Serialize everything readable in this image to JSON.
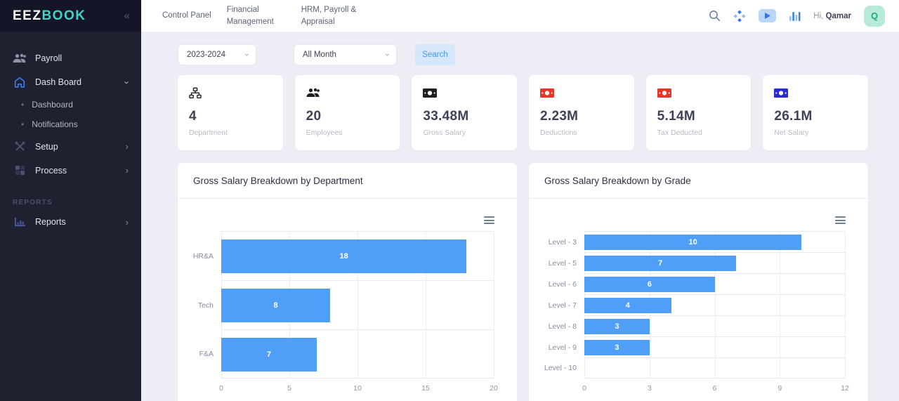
{
  "sidebar": {
    "logo": {
      "primary": "EEZ",
      "secondary": "BOOK"
    },
    "collapse_icon": "«",
    "items": [
      {
        "label": "Payroll",
        "icon": "users-icon"
      },
      {
        "label": "Dash Board",
        "icon": "home-icon",
        "expanded": true
      },
      {
        "label": "Dashboard",
        "icon": "bullet-icon"
      },
      {
        "label": "Notifications",
        "icon": "bullet-icon"
      },
      {
        "label": "Setup",
        "icon": "tools-icon"
      },
      {
        "label": "Process",
        "icon": "grid-icon"
      },
      {
        "label": "Reports",
        "icon": "bar-chart-icon"
      }
    ],
    "section_label": "REPORTS"
  },
  "topbar": {
    "nav": [
      {
        "label": "Control Panel"
      },
      {
        "label": "Financial Management"
      },
      {
        "label": "HRM, Payroll & Appraisal"
      }
    ],
    "icons": [
      "search-icon",
      "apps-diamond-icon",
      "video-play-icon",
      "bar-chart-icon"
    ],
    "greeting": "Hi,",
    "user_name": "Qamar",
    "avatar_initial": "Q"
  },
  "filters": {
    "year_value": "2023-2024",
    "month_value": "All Month",
    "search_label": "Search"
  },
  "stats": [
    {
      "value": "4",
      "label": "Department",
      "icon": "sitemap-icon",
      "icon_color": "#202024"
    },
    {
      "value": "20",
      "label": "Employees",
      "icon": "users-icon",
      "icon_color": "#202024"
    },
    {
      "value": "33.48M",
      "label": "Gross Salary",
      "icon": "money-bill-icon",
      "icon_color": "#202024"
    },
    {
      "value": "2.23M",
      "label": "Deductions",
      "icon": "money-bill-icon",
      "icon_color": "#e6352b"
    },
    {
      "value": "5.14M",
      "label": "Tax Deducted",
      "icon": "money-bill-icon",
      "icon_color": "#e6352b"
    },
    {
      "value": "26.1M",
      "label": "Net Salary",
      "icon": "money-bill-icon",
      "icon_color": "#2a2ad4"
    }
  ],
  "chart_data": [
    {
      "type": "bar",
      "orientation": "horizontal",
      "title": "Gross Salary Breakdown by Department",
      "categories": [
        "HR&A",
        "Tech",
        "F&A"
      ],
      "values": [
        18,
        8,
        7
      ],
      "xticks": [
        0,
        5,
        10,
        15,
        20
      ],
      "xlim": [
        0,
        20
      ],
      "bar_color": "#4f9ef8",
      "grid": true,
      "legend": "none"
    },
    {
      "type": "bar",
      "orientation": "horizontal",
      "title": "Gross Salary Breakdown by Grade",
      "categories": [
        "Level - 3",
        "Level - 5",
        "Level - 6",
        "Level - 7",
        "Level - 8",
        "Level - 9",
        "Level - 10"
      ],
      "values": [
        10,
        7,
        6,
        4,
        3,
        3,
        0
      ],
      "xticks": [
        0,
        3,
        6,
        9,
        12
      ],
      "xlim": [
        0,
        12
      ],
      "bar_color": "#4f9ef8",
      "grid": true,
      "legend": "none"
    }
  ],
  "colors": {
    "accent_blue": "#4f9ef8",
    "logo_accent": "#43d3c6",
    "sidebar_bg": "#1f2030",
    "search_btn_bg": "#d7e7fb",
    "search_btn_text": "#4a96f4",
    "avatar_bg": "#b7ead9",
    "avatar_text": "#1fa98a",
    "stat_icon_red": "#e6352b",
    "stat_icon_blue": "#2a2ad4"
  }
}
